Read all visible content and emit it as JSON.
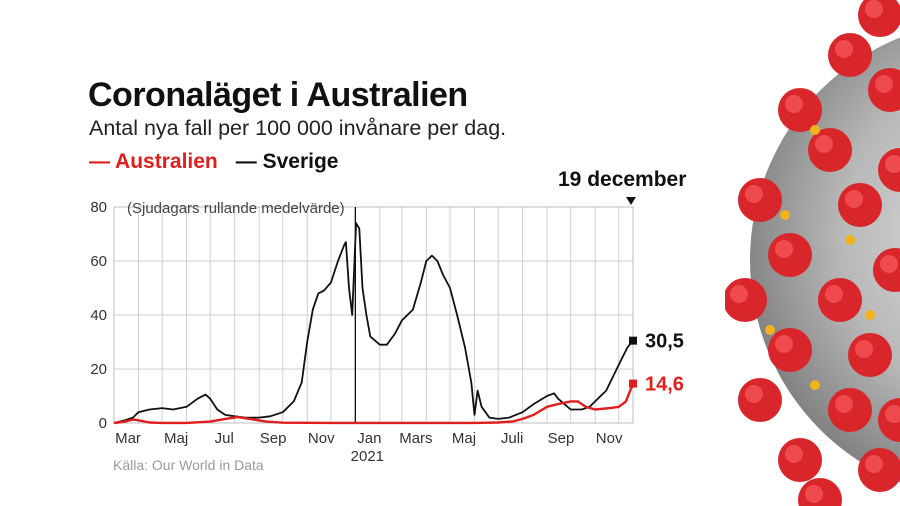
{
  "title": "Coronaläget i Australien",
  "subtitle": "Antal nya fall per 100 000 invånare per dag.",
  "legend": [
    {
      "label": "— Australien",
      "color": "#e01e1e"
    },
    {
      "label": "— Sverige",
      "color": "#111111"
    }
  ],
  "date_label": "19 december",
  "note": "(Sjudagars rullande medelvärde)",
  "source": "Källa: Our World in Data",
  "chart_data": {
    "type": "line",
    "title": "Coronaläget i Australien",
    "ylim": [
      0,
      80
    ],
    "y_ticks": [
      "0",
      "20",
      "40",
      "60",
      "80"
    ],
    "x_tick_labels": [
      "Mar",
      "Maj",
      "Jul",
      "Sep",
      "Nov",
      "Jan",
      "Mars",
      "Maj",
      "Juli",
      "Sep",
      "Nov"
    ],
    "year_label": "2021",
    "grid": true,
    "series": [
      {
        "name": "Sverige",
        "color": "#111111",
        "end_label": "30,5",
        "points": [
          [
            "2020-03-01",
            0
          ],
          [
            "2020-03-15",
            1
          ],
          [
            "2020-03-25",
            2
          ],
          [
            "2020-04-01",
            4
          ],
          [
            "2020-04-15",
            5
          ],
          [
            "2020-05-01",
            5.5
          ],
          [
            "2020-05-15",
            5
          ],
          [
            "2020-06-01",
            6
          ],
          [
            "2020-06-15",
            9
          ],
          [
            "2020-06-25",
            10.5
          ],
          [
            "2020-07-01",
            9
          ],
          [
            "2020-07-10",
            5
          ],
          [
            "2020-07-20",
            3
          ],
          [
            "2020-08-01",
            2.5
          ],
          [
            "2020-08-15",
            2
          ],
          [
            "2020-09-01",
            2
          ],
          [
            "2020-09-15",
            2.5
          ],
          [
            "2020-10-01",
            4
          ],
          [
            "2020-10-15",
            8
          ],
          [
            "2020-10-25",
            15
          ],
          [
            "2020-11-01",
            30
          ],
          [
            "2020-11-08",
            42
          ],
          [
            "2020-11-15",
            48
          ],
          [
            "2020-11-22",
            49
          ],
          [
            "2020-12-01",
            52
          ],
          [
            "2020-12-10",
            60
          ],
          [
            "2020-12-18",
            66
          ],
          [
            "2020-12-20",
            67
          ],
          [
            "2020-12-24",
            50
          ],
          [
            "2020-12-28",
            40
          ],
          [
            "2021-01-02",
            74
          ],
          [
            "2021-01-06",
            72
          ],
          [
            "2021-01-10",
            50
          ],
          [
            "2021-01-15",
            40
          ],
          [
            "2021-01-20",
            32
          ],
          [
            "2021-02-01",
            29
          ],
          [
            "2021-02-10",
            29
          ],
          [
            "2021-02-20",
            33
          ],
          [
            "2021-03-01",
            38
          ],
          [
            "2021-03-15",
            42
          ],
          [
            "2021-03-25",
            52
          ],
          [
            "2021-04-01",
            60
          ],
          [
            "2021-04-08",
            62
          ],
          [
            "2021-04-15",
            60
          ],
          [
            "2021-04-22",
            55
          ],
          [
            "2021-05-01",
            50
          ],
          [
            "2021-05-10",
            40
          ],
          [
            "2021-05-20",
            28
          ],
          [
            "2021-05-28",
            15
          ],
          [
            "2021-06-01",
            3
          ],
          [
            "2021-06-05",
            12
          ],
          [
            "2021-06-10",
            6
          ],
          [
            "2021-06-20",
            2
          ],
          [
            "2021-07-01",
            1.5
          ],
          [
            "2021-07-15",
            2
          ],
          [
            "2021-08-01",
            4
          ],
          [
            "2021-08-15",
            7
          ],
          [
            "2021-09-01",
            10
          ],
          [
            "2021-09-10",
            11
          ],
          [
            "2021-09-15",
            9
          ],
          [
            "2021-10-01",
            5
          ],
          [
            "2021-10-15",
            5
          ],
          [
            "2021-10-25",
            6
          ],
          [
            "2021-11-01",
            8
          ],
          [
            "2021-11-15",
            12
          ],
          [
            "2021-11-25",
            18
          ],
          [
            "2021-12-05",
            24
          ],
          [
            "2021-12-12",
            28
          ],
          [
            "2021-12-19",
            30.5
          ]
        ]
      },
      {
        "name": "Australien",
        "color": "#e01e1e",
        "end_label": "14,6",
        "points": [
          [
            "2020-03-01",
            0
          ],
          [
            "2020-03-15",
            0.5
          ],
          [
            "2020-03-25",
            1.3
          ],
          [
            "2020-04-01",
            1
          ],
          [
            "2020-04-15",
            0.2
          ],
          [
            "2020-05-01",
            0.05
          ],
          [
            "2020-06-01",
            0.05
          ],
          [
            "2020-07-01",
            0.5
          ],
          [
            "2020-07-20",
            1.5
          ],
          [
            "2020-08-05",
            2.2
          ],
          [
            "2020-08-20",
            1.5
          ],
          [
            "2020-09-10",
            0.5
          ],
          [
            "2020-10-01",
            0.1
          ],
          [
            "2020-12-01",
            0.05
          ],
          [
            "2021-06-01",
            0.05
          ],
          [
            "2021-07-01",
            0.2
          ],
          [
            "2021-07-20",
            0.6
          ],
          [
            "2021-08-01",
            1.5
          ],
          [
            "2021-08-15",
            3
          ],
          [
            "2021-09-01",
            6
          ],
          [
            "2021-09-15",
            7
          ],
          [
            "2021-10-01",
            8
          ],
          [
            "2021-10-10",
            8
          ],
          [
            "2021-10-20",
            6
          ],
          [
            "2021-11-01",
            5
          ],
          [
            "2021-11-20",
            5.5
          ],
          [
            "2021-12-01",
            6
          ],
          [
            "2021-12-10",
            8
          ],
          [
            "2021-12-19",
            14.6
          ]
        ]
      }
    ]
  }
}
